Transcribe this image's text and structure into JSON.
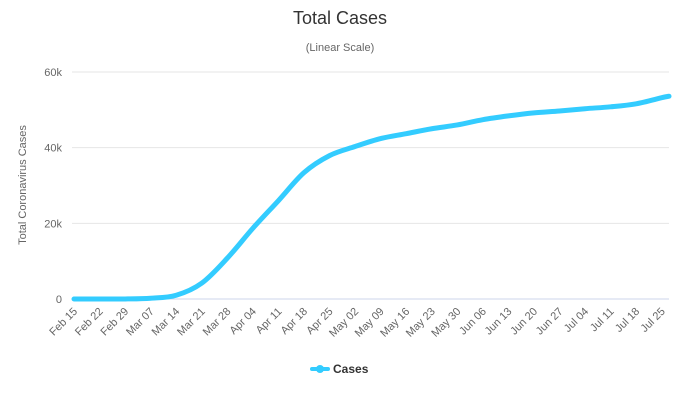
{
  "chart_data": {
    "type": "line",
    "title": "Total Cases",
    "subtitle": "(Linear Scale)",
    "xlabel": "",
    "ylabel": "Total Coronavirus Cases",
    "ylim": [
      0,
      60000
    ],
    "yticks": [
      0,
      20000,
      40000,
      60000
    ],
    "ytick_labels": [
      "0",
      "20k",
      "40k",
      "60k"
    ],
    "grid": true,
    "legend_position": "bottom-center",
    "color": "#33ccff",
    "x_tick_labels": [
      "Feb 15",
      "Feb 22",
      "Feb 29",
      "Mar 07",
      "Mar 14",
      "Mar 21",
      "Mar 28",
      "Apr 04",
      "Apr 11",
      "Apr 18",
      "Apr 25",
      "May 02",
      "May 09",
      "May 16",
      "May 23",
      "May 30",
      "Jun 06",
      "Jun 13",
      "Jun 20",
      "Jun 27",
      "Jul 04",
      "Jul 11",
      "Jul 18",
      "Jul 25"
    ],
    "series": [
      {
        "name": "Cases",
        "day_offsets": [
          0,
          7,
          14,
          21,
          28,
          35,
          42,
          49,
          56,
          63,
          70,
          77,
          84,
          91,
          98,
          105,
          112,
          119,
          126,
          133,
          140,
          147,
          154,
          161,
          163
        ],
        "values": [
          0,
          0,
          10,
          200,
          1000,
          4200,
          10800,
          18700,
          26000,
          33400,
          37900,
          40300,
          42400,
          43700,
          45000,
          46000,
          47400,
          48400,
          49200,
          49700,
          50300,
          50800,
          51600,
          53200,
          53600
        ]
      }
    ]
  }
}
